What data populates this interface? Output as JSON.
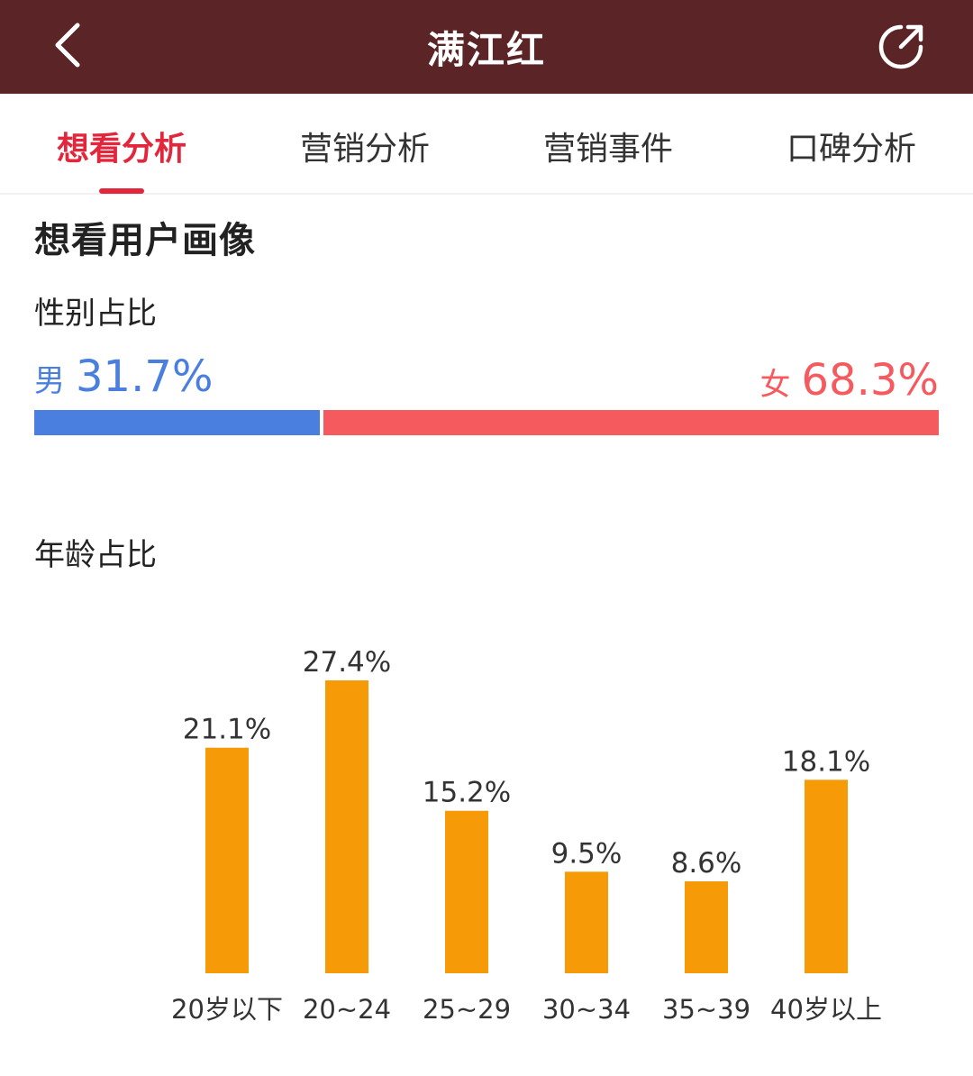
{
  "header": {
    "title": "满江红",
    "back_icon": "chevron-left-icon",
    "share_icon": "share-icon"
  },
  "tabs": [
    {
      "label": "想看分析",
      "active": true
    },
    {
      "label": "营销分析",
      "active": false
    },
    {
      "label": "营销事件",
      "active": false
    },
    {
      "label": "口碑分析",
      "active": false
    }
  ],
  "section_title": "想看用户画像",
  "gender": {
    "title": "性别占比",
    "male_label": "男",
    "male_value": "31.7%",
    "male_share": 31.7,
    "female_label": "女",
    "female_value": "68.3%",
    "female_share": 68.3
  },
  "age": {
    "title": "年龄占比"
  },
  "colors": {
    "header_bg": "#5b2527",
    "accent": "#e3263c",
    "male": "#4a7fdf",
    "female": "#f55a5f",
    "bar": "#f79a07"
  },
  "chart_data": {
    "type": "bar",
    "categories": [
      "20岁以下",
      "20~24",
      "25~29",
      "30~34",
      "35~39",
      "40岁以上"
    ],
    "values": [
      21.1,
      27.4,
      15.2,
      9.5,
      8.6,
      18.1
    ],
    "labels": [
      "21.1%",
      "27.4%",
      "15.2%",
      "9.5%",
      "8.6%",
      "18.1%"
    ],
    "unit": "%",
    "title": "",
    "xlabel": "",
    "ylabel": "",
    "grid": false,
    "axes_visible": false
  }
}
